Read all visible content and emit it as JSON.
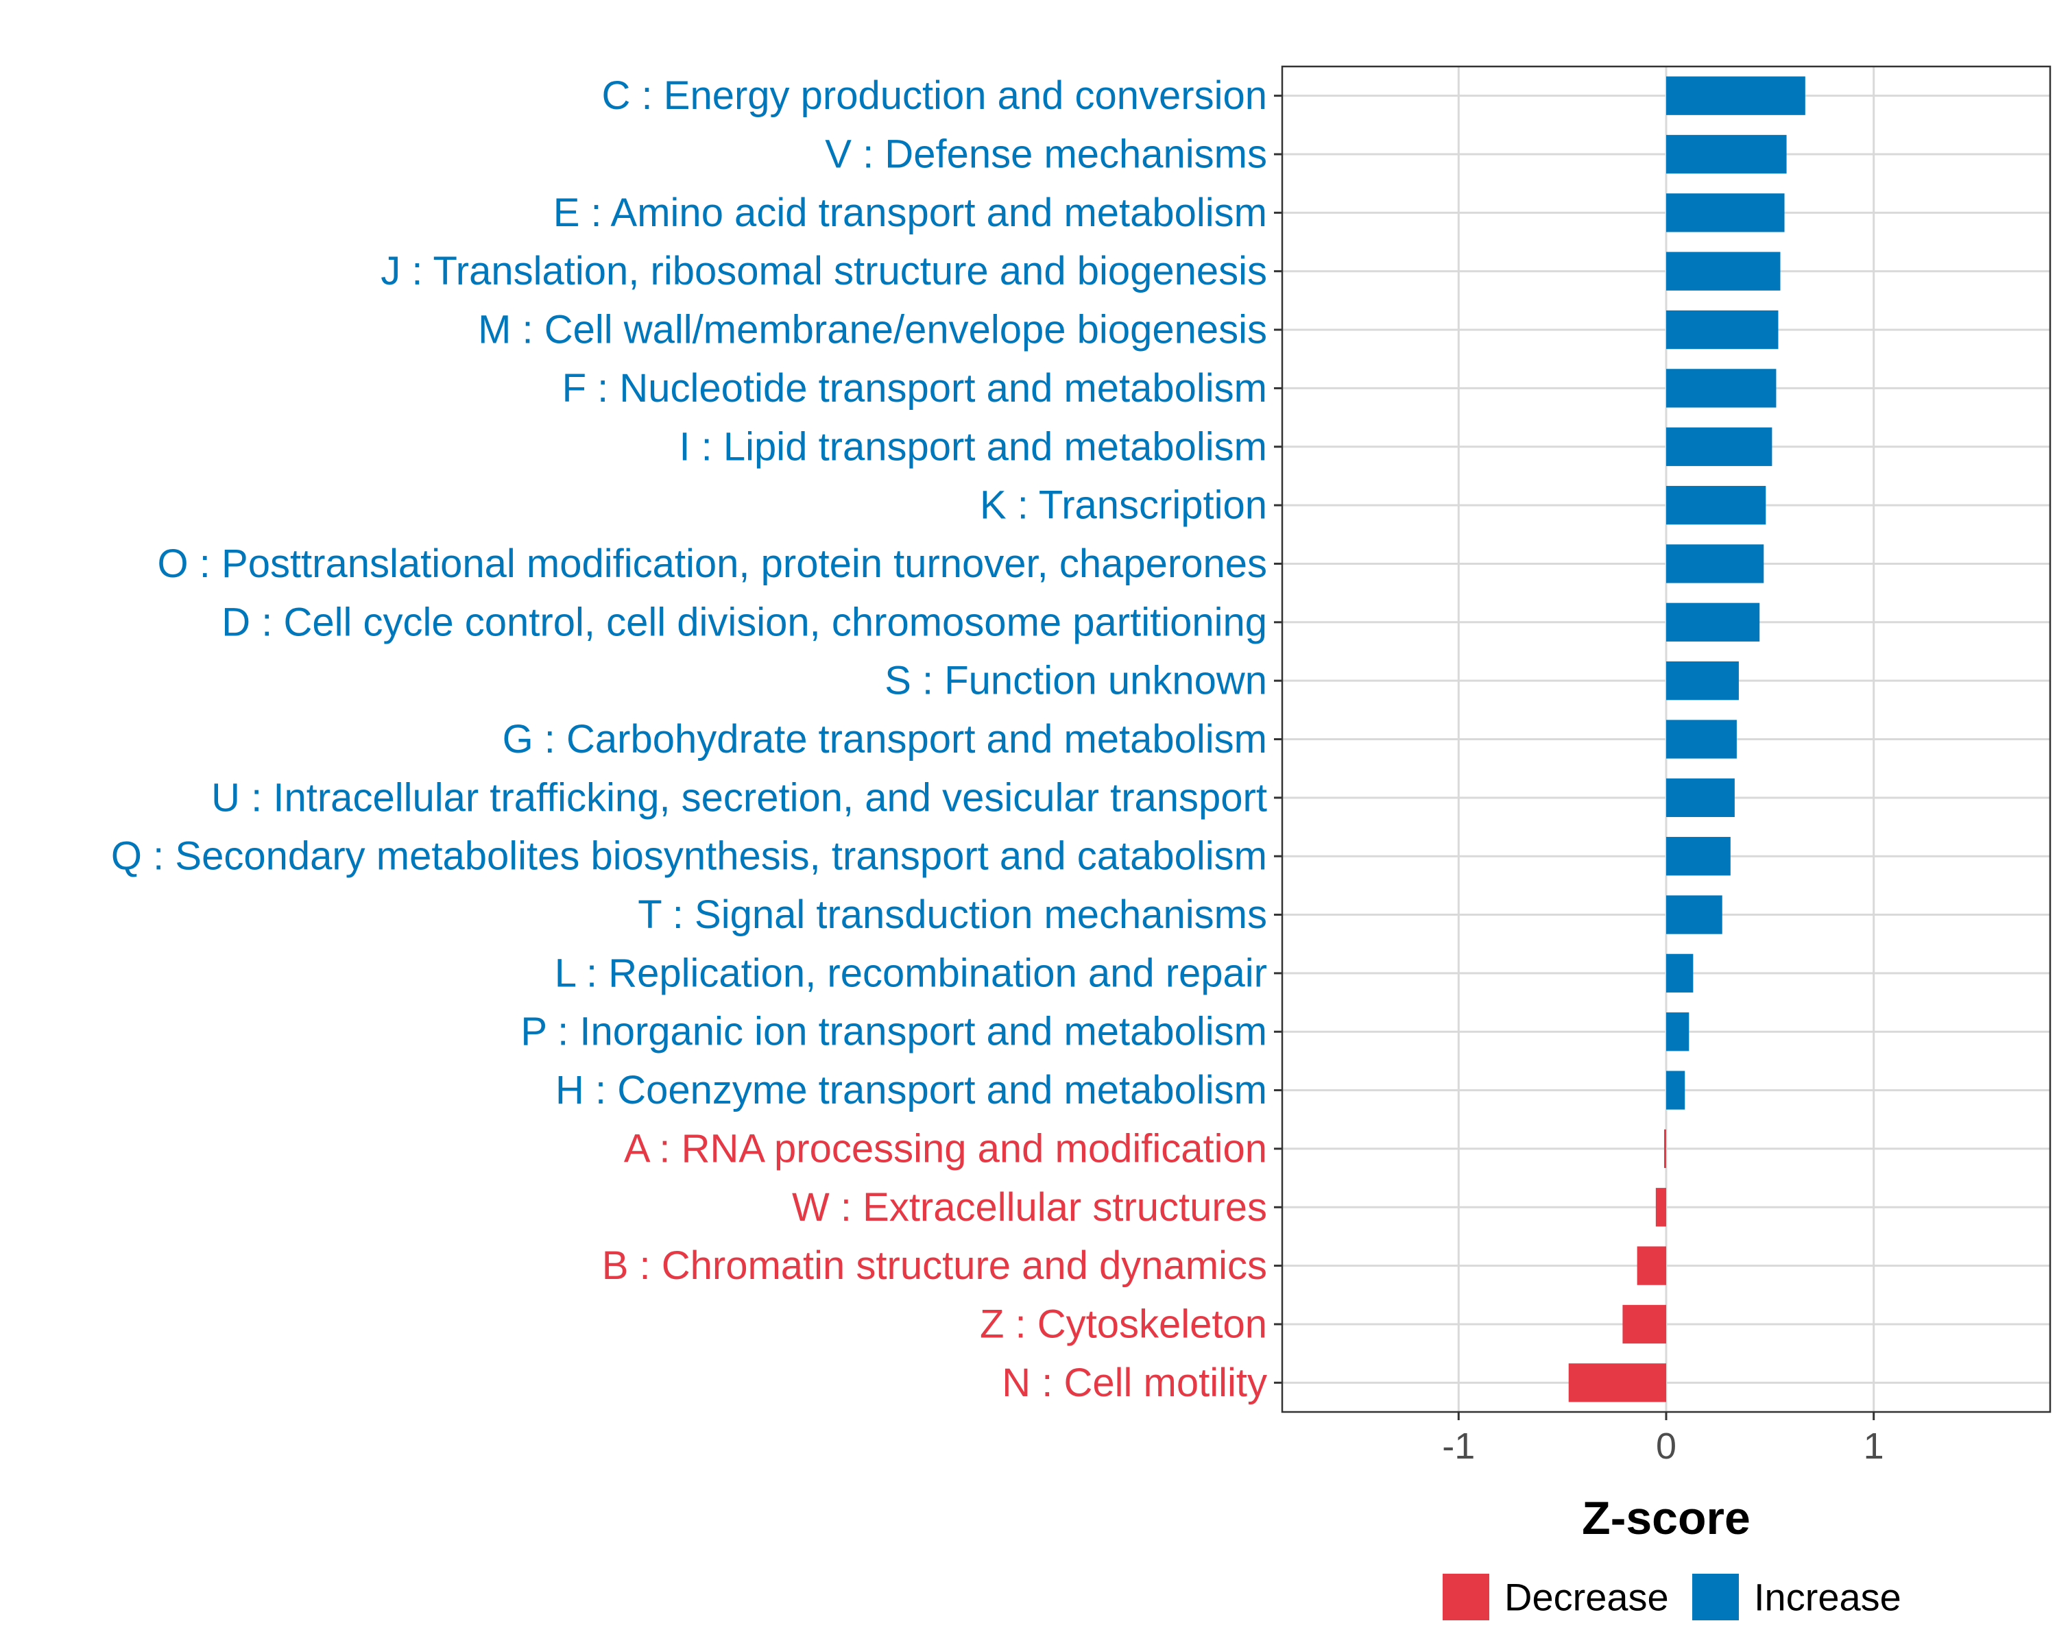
{
  "chart_data": {
    "type": "bar",
    "orientation": "horizontal",
    "xlabel": "Z-score",
    "xlim": [
      -1.85,
      1.85
    ],
    "xticks": [
      -1,
      0,
      1
    ],
    "xtick_labels": [
      "-1",
      "0",
      "1"
    ],
    "grid": true,
    "legend_position": "bottom",
    "colors": {
      "Decrease": "#e63946",
      "Increase": "#0077bb"
    },
    "legend": [
      {
        "name": "Decrease",
        "color": "#e63946"
      },
      {
        "name": "Increase",
        "color": "#0077bb"
      }
    ],
    "categories": [
      "C : Energy production and conversion",
      "V : Defense mechanisms",
      "E : Amino acid transport and metabolism",
      "J : Translation, ribosomal structure and biogenesis",
      "M : Cell wall/membrane/envelope biogenesis",
      "F : Nucleotide transport and metabolism",
      "I : Lipid transport and metabolism",
      "K : Transcription",
      "O : Posttranslational modification, protein turnover, chaperones",
      "D : Cell cycle control, cell division, chromosome partitioning",
      "S : Function unknown",
      "G : Carbohydrate transport and metabolism",
      "U : Intracellular trafficking, secretion, and vesicular transport",
      "Q : Secondary metabolites biosynthesis, transport and catabolism",
      "T : Signal transduction mechanisms",
      "L : Replication, recombination and repair",
      "P : Inorganic ion transport and metabolism",
      "H : Coenzyme transport and metabolism",
      "A : RNA processing and modification",
      "W : Extracellular structures",
      "B : Chromatin structure and dynamics",
      "Z : Cytoskeleton",
      "N : Cell motility"
    ],
    "values": [
      0.67,
      0.58,
      0.57,
      0.55,
      0.54,
      0.53,
      0.51,
      0.48,
      0.47,
      0.45,
      0.35,
      0.34,
      0.33,
      0.31,
      0.27,
      0.13,
      0.11,
      0.09,
      -0.01,
      -0.05,
      -0.14,
      -0.21,
      -0.47
    ],
    "direction": [
      "Increase",
      "Increase",
      "Increase",
      "Increase",
      "Increase",
      "Increase",
      "Increase",
      "Increase",
      "Increase",
      "Increase",
      "Increase",
      "Increase",
      "Increase",
      "Increase",
      "Increase",
      "Increase",
      "Increase",
      "Increase",
      "Decrease",
      "Decrease",
      "Decrease",
      "Decrease",
      "Decrease"
    ]
  }
}
